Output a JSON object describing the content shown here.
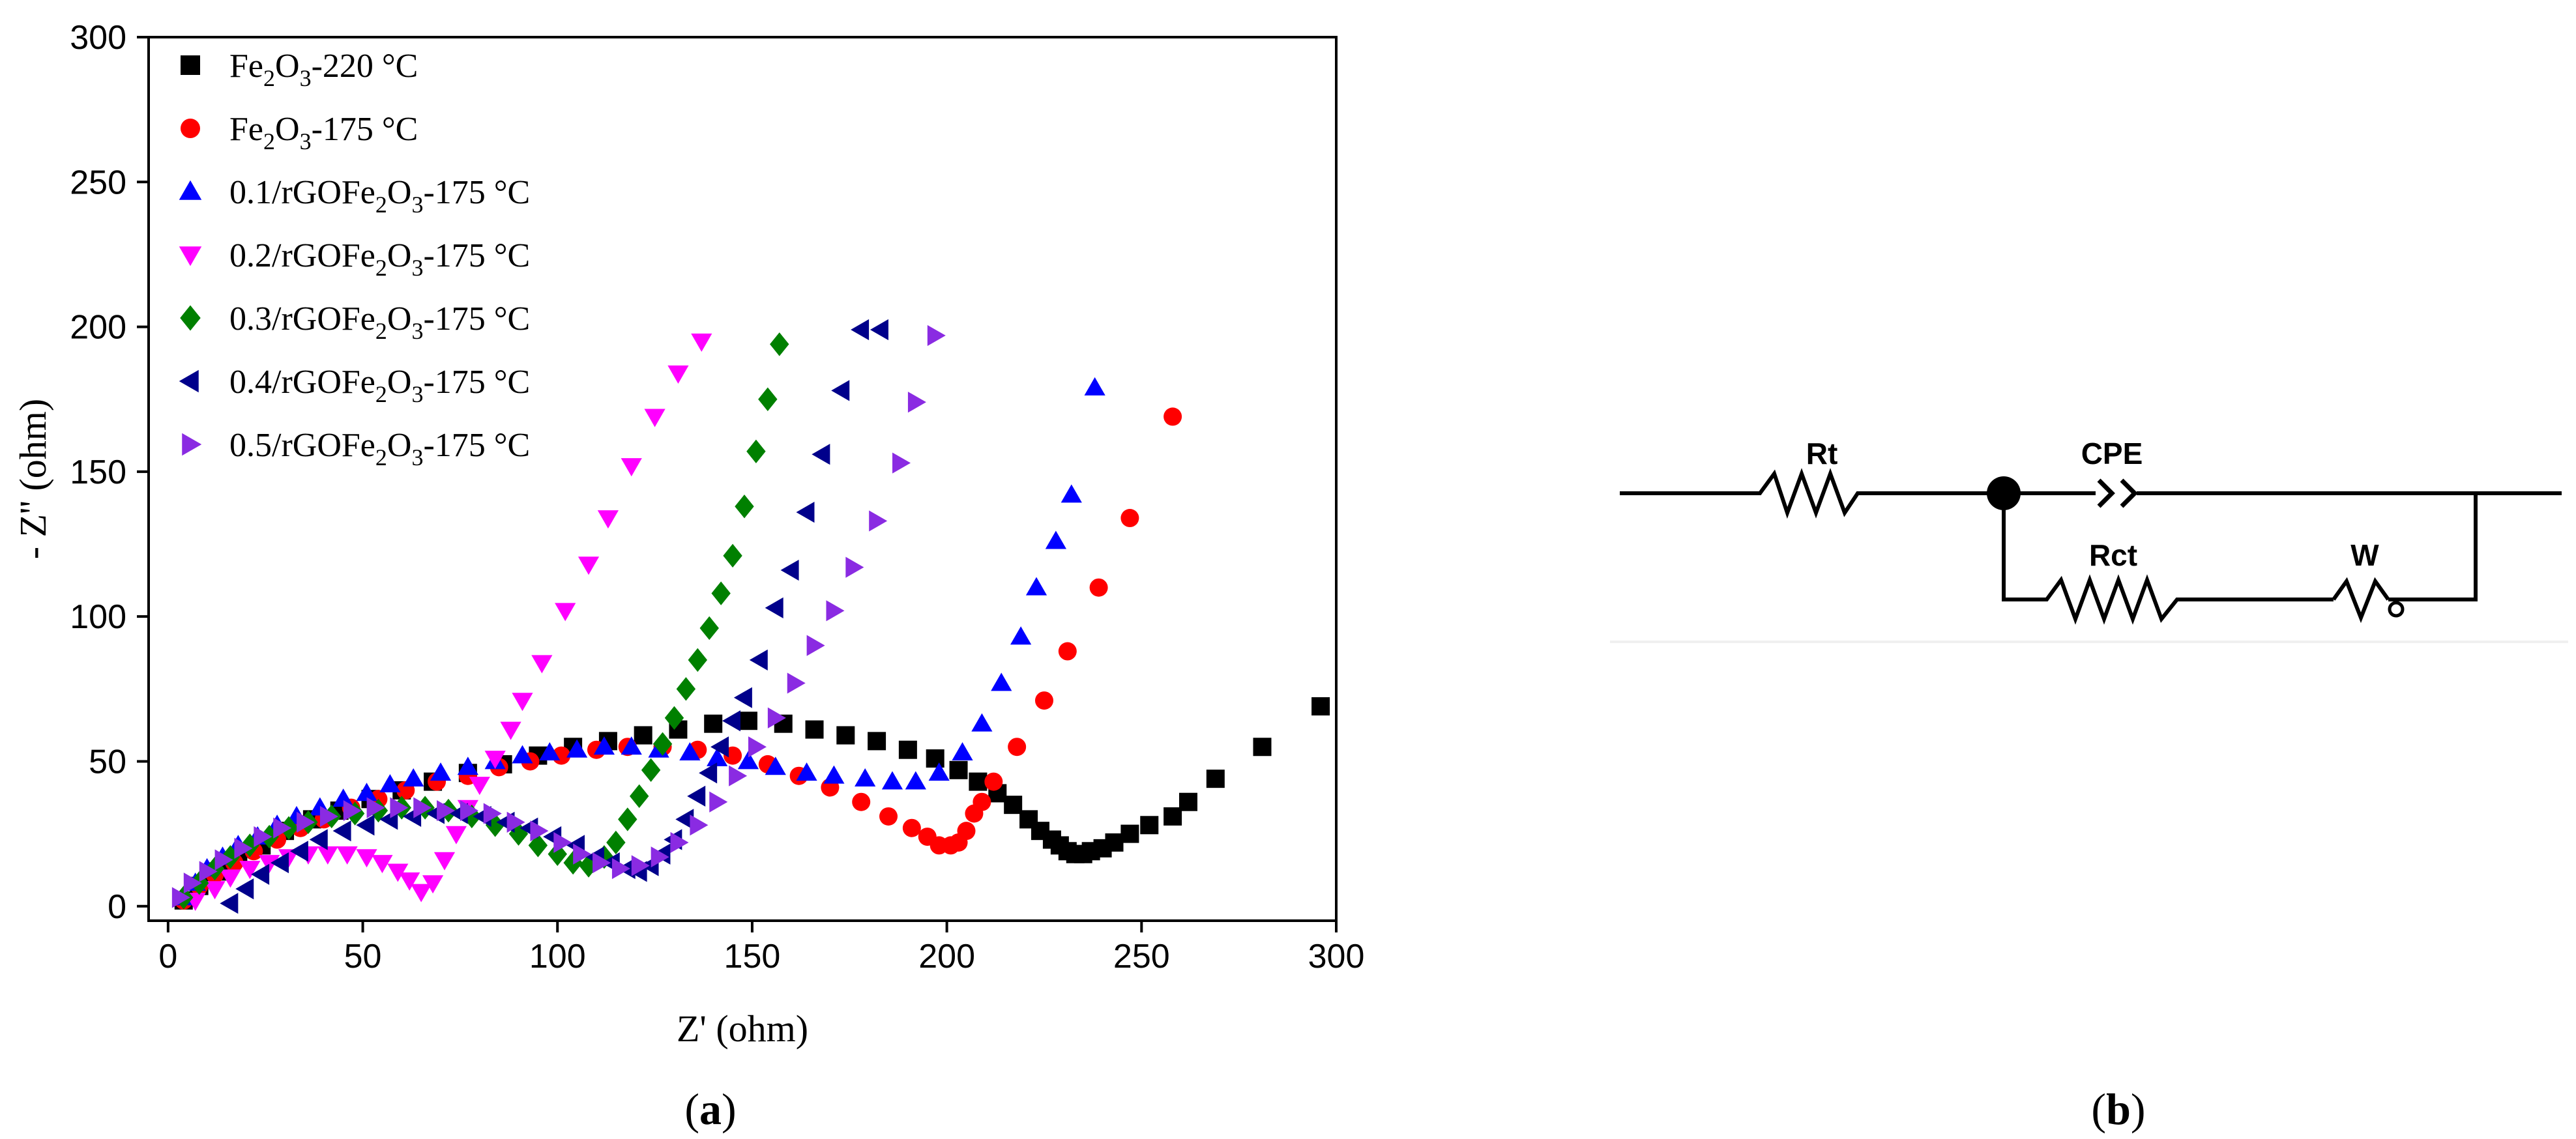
{
  "chart_data": {
    "type": "scatter",
    "xlabel": "Z' (ohm)",
    "ylabel": "- Z'' (ohm)",
    "xlim": [
      -5,
      300
    ],
    "ylim": [
      -5,
      300
    ],
    "xticks": [
      0,
      50,
      100,
      150,
      200,
      250,
      300
    ],
    "yticks": [
      0,
      50,
      100,
      150,
      200,
      250,
      300
    ],
    "legend_position": "top-left",
    "series": [
      {
        "name": "Fe2O3-220 °C",
        "label_parts": [
          "Fe",
          "2",
          "O",
          "3",
          "-220 °C"
        ],
        "color": "#000000",
        "marker": "square",
        "x": [
          4,
          8,
          13,
          18,
          24,
          30,
          37,
          44,
          52,
          60,
          68,
          77,
          86,
          95,
          104,
          113,
          122,
          131,
          140,
          149,
          158,
          166,
          174,
          182,
          190,
          197,
          203,
          208,
          213,
          217,
          221,
          224,
          227,
          229,
          231,
          233,
          235,
          237,
          240,
          243,
          247,
          252,
          258,
          262,
          269,
          281,
          296
        ],
        "y": [
          2,
          7,
          12,
          17,
          21,
          26,
          30,
          33,
          37,
          40,
          43,
          46,
          49,
          52,
          55,
          57,
          59,
          61,
          63,
          64,
          63,
          61,
          59,
          57,
          54,
          51,
          47,
          43,
          39,
          35,
          30,
          26,
          23,
          21,
          19,
          18,
          18,
          19,
          20,
          22,
          25,
          28,
          31,
          36,
          44,
          55,
          69
        ]
      },
      {
        "name": "Fe2O3-175 °C",
        "label_parts": [
          "Fe",
          "2",
          "O",
          "3",
          "-175 °C"
        ],
        "color": "#ff0000",
        "marker": "circle",
        "x": [
          4,
          8,
          12,
          17,
          22,
          28,
          34,
          40,
          47,
          54,
          61,
          69,
          77,
          85,
          93,
          101,
          110,
          118,
          127,
          136,
          145,
          154,
          162,
          170,
          178,
          185,
          191,
          195,
          198,
          201,
          203,
          205,
          207,
          209,
          212,
          218,
          225,
          231,
          239,
          247,
          258
        ],
        "y": [
          2,
          7,
          11,
          15,
          19,
          23,
          27,
          30,
          34,
          37,
          40,
          43,
          45,
          48,
          50,
          52,
          54,
          55,
          55,
          54,
          52,
          49,
          45,
          41,
          36,
          31,
          27,
          24,
          21,
          21,
          22,
          26,
          32,
          36,
          43,
          55,
          71,
          88,
          110,
          134,
          169
        ]
      },
      {
        "name": "0.1/rGOFe2O3-175 °C",
        "label_parts": [
          "0.1/rGOFe",
          "2",
          "O",
          "3",
          "-175 °C"
        ],
        "color": "#0000ff",
        "marker": "triangle-up",
        "x": [
          4,
          7,
          10,
          14,
          18,
          23,
          28,
          33,
          39,
          45,
          51,
          57,
          63,
          70,
          77,
          84,
          91,
          98,
          105,
          112,
          119,
          126,
          134,
          141,
          149,
          156,
          164,
          171,
          179,
          186,
          192,
          198,
          204,
          209,
          214,
          219,
          223,
          228,
          232,
          238
        ],
        "y": [
          3,
          8,
          13,
          17,
          21,
          24,
          28,
          31,
          34,
          37,
          39,
          42,
          44,
          46,
          48,
          50,
          52,
          53,
          54,
          55,
          55,
          54,
          53,
          51,
          50,
          48,
          46,
          45,
          44,
          43,
          43,
          46,
          53,
          63,
          77,
          93,
          110,
          126,
          142,
          179
        ]
      },
      {
        "name": "0.2/rGOFe2O3-175 °C",
        "label_parts": [
          "0.2/rGOFe",
          "2",
          "O",
          "3",
          "-175 °C"
        ],
        "color": "#ff00ff",
        "marker": "triangle-down",
        "x": [
          7,
          12,
          16,
          21,
          26,
          31,
          36,
          41,
          46,
          51,
          55,
          59,
          62,
          65,
          68,
          71,
          74,
          77,
          80,
          84,
          88,
          91,
          96,
          102,
          108,
          113,
          119,
          125,
          131,
          137
        ],
        "y": [
          2,
          6,
          10,
          13,
          15,
          17,
          18,
          18,
          18,
          17,
          15,
          12,
          9,
          5,
          8,
          16,
          25,
          34,
          42,
          51,
          61,
          71,
          84,
          102,
          118,
          134,
          152,
          169,
          184,
          195
        ]
      },
      {
        "name": "0.3/rGOFe2O3-175 °C",
        "label_parts": [
          "0.3/rGOFe",
          "2",
          "O",
          "3",
          "-175 °C"
        ],
        "color": "#008000",
        "marker": "diamond",
        "x": [
          4,
          8,
          12,
          16,
          21,
          26,
          31,
          36,
          42,
          48,
          54,
          60,
          66,
          72,
          78,
          84,
          90,
          95,
          100,
          104,
          108,
          112,
          115,
          118,
          121,
          124,
          127,
          130,
          133,
          136,
          139,
          142,
          145,
          148,
          151,
          154,
          157
        ],
        "y": [
          3,
          8,
          13,
          17,
          21,
          24,
          27,
          29,
          31,
          32,
          33,
          34,
          34,
          33,
          31,
          28,
          25,
          21,
          18,
          15,
          14,
          17,
          22,
          30,
          38,
          47,
          56,
          65,
          75,
          85,
          96,
          108,
          121,
          138,
          157,
          175,
          194
        ]
      },
      {
        "name": "0.4/rGOFe2O3-175 °C",
        "label_parts": [
          "0.4/rGOFe",
          "2",
          "O",
          "3",
          "-175 °C"
        ],
        "color": "#00008b",
        "marker": "triangle-left",
        "x": [
          16,
          20,
          24,
          29,
          34,
          39,
          45,
          51,
          57,
          63,
          69,
          75,
          81,
          87,
          93,
          99,
          105,
          110,
          114,
          118,
          121,
          124,
          127,
          130,
          133,
          136,
          139,
          142,
          145,
          148,
          152,
          156,
          160,
          164,
          168,
          173,
          178,
          183
        ],
        "y": [
          1,
          6,
          11,
          15,
          19,
          23,
          26,
          28,
          30,
          31,
          32,
          32,
          31,
          29,
          27,
          24,
          21,
          17,
          15,
          13,
          12,
          14,
          18,
          23,
          30,
          38,
          46,
          55,
          64,
          72,
          85,
          103,
          116,
          136,
          156,
          178,
          199,
          199
        ]
      },
      {
        "name": "0.5/rGOFe2O3-175 °C",
        "label_parts": [
          "0.5/rGOFe",
          "2",
          "O",
          "3",
          "-175 °C"
        ],
        "color": "#8a2be2",
        "marker": "triangle-right",
        "x": [
          3,
          6,
          10,
          14,
          19,
          24,
          29,
          35,
          41,
          47,
          53,
          59,
          65,
          71,
          77,
          83,
          89,
          95,
          101,
          106,
          111,
          116,
          121,
          126,
          131,
          136,
          141,
          146,
          151,
          156,
          161,
          166,
          171,
          176,
          182,
          188,
          192,
          197
        ],
        "y": [
          3,
          8,
          12,
          16,
          20,
          24,
          27,
          29,
          31,
          33,
          34,
          34,
          34,
          33,
          33,
          32,
          29,
          26,
          22,
          18,
          15,
          13,
          14,
          17,
          22,
          28,
          36,
          45,
          55,
          65,
          77,
          90,
          102,
          117,
          133,
          153,
          174,
          197
        ]
      }
    ]
  },
  "panel_a": {
    "caption_open": "(",
    "caption_letter": "a",
    "caption_close": ")"
  },
  "panel_b": {
    "caption_open": "(",
    "caption_letter": "b",
    "caption_close": ")",
    "circuit": {
      "rt_label": "Rt",
      "cpe_label": "CPE",
      "rct_label": "Rct",
      "w_label": "W"
    }
  }
}
